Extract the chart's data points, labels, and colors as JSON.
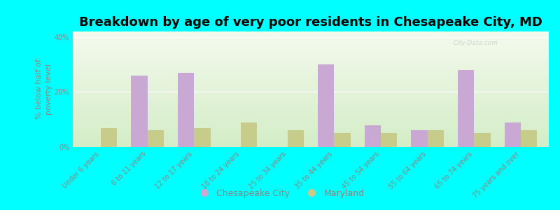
{
  "title": "Breakdown by age of very poor residents in Chesapeake City, MD",
  "ylabel": "% below half of\npoverty level",
  "categories": [
    "Under 6 years",
    "6 to 11 years",
    "12 to 17 years",
    "18 to 24 years",
    "25 to 34 years",
    "35 to 44 years",
    "45 to 54 years",
    "55 to 64 years",
    "65 to 74 years",
    "75 years and over"
  ],
  "chesapeake_values": [
    0,
    26,
    27,
    0,
    0,
    30,
    8,
    6,
    28,
    9
  ],
  "maryland_values": [
    7,
    6,
    7,
    9,
    6,
    5,
    5,
    6,
    5,
    6
  ],
  "chesapeake_color": "#c9a8d4",
  "maryland_color": "#c8cc8a",
  "background_color": "#00ffff",
  "bar_width": 0.35,
  "ylim": [
    0,
    42
  ],
  "yticks": [
    0,
    20,
    40
  ],
  "ytick_labels": [
    "0%",
    "20%",
    "40%"
  ],
  "legend_chesapeake": "Chesapeake City",
  "legend_maryland": "Maryland",
  "title_fontsize": 13,
  "axis_label_fontsize": 8,
  "tick_label_fontsize": 7,
  "legend_fontsize": 9,
  "watermark": "City-Data.com",
  "grid_color": "#ffffff",
  "label_color": "#888888"
}
